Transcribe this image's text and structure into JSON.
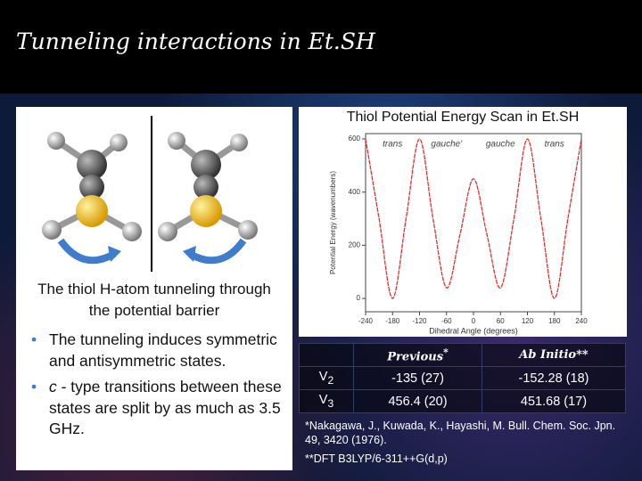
{
  "header": {
    "title": "Tunneling interactions in Et.SH"
  },
  "left_panel": {
    "caption": "The thiol H-atom tunneling through the potential barrier",
    "bullets": [
      {
        "lead": "",
        "text": "The tunneling induces symmetric and antisymmetric states."
      },
      {
        "lead": "c",
        "text": " - type transitions between these states are split by as much as 3.5 GHz."
      }
    ]
  },
  "plot": {
    "title": "Thiol Potential Energy Scan in Et.SH",
    "xlabel": "Dihedral Angle (degrees)",
    "ylabel": "Potential Energy (wavenumbers)",
    "conformers": [
      "trans",
      "gauche'",
      "gauche",
      "trans"
    ],
    "x": [
      -240,
      -210,
      -180,
      -150,
      -120,
      -90,
      -60,
      -30,
      0,
      30,
      60,
      90,
      120,
      150,
      180,
      210,
      240
    ],
    "values": [
      600,
      300,
      0,
      300,
      600,
      300,
      40,
      240,
      450,
      240,
      40,
      300,
      600,
      300,
      0,
      300,
      600
    ],
    "color": "#e03030",
    "xlim": [
      -240,
      240
    ],
    "ylim": [
      -50,
      620
    ],
    "xticks": [
      -240,
      -180,
      -120,
      -60,
      0,
      60,
      120,
      180,
      240
    ],
    "yticks": [
      0,
      200,
      400,
      600
    ]
  },
  "table": {
    "columns": [
      {
        "text": "Previous",
        "sup": "*"
      },
      {
        "text": "Ab Initio**",
        "sup": ""
      }
    ],
    "rows": [
      {
        "symbol": "V",
        "sub": "2",
        "cells": [
          "-135 (27)",
          "-152.28 (18)"
        ]
      },
      {
        "symbol": "V",
        "sub": "3",
        "cells": [
          "456.4 (20)",
          "451.68 (17)"
        ]
      }
    ]
  },
  "footnotes": [
    "*Nakagawa, J., Kuwada, K., Hayashi, M. Bull. Chem. Soc.  Jpn.  49, 3420 (1976).",
    "**DFT B3LYP/6-311++G(d,p)"
  ]
}
